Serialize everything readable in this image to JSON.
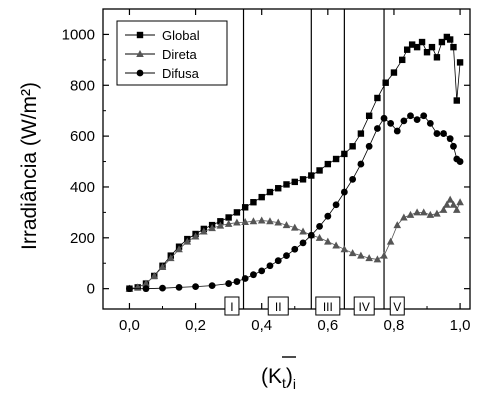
{
  "chart_data": {
    "type": "scatter",
    "ylabel": "Irradiância (W/m²)",
    "xlabel_main": "(K",
    "xlabel_sub_t": "t",
    "xlabel_close": ")",
    "xlabel_sub_i": "i",
    "xlim": [
      -0.08,
      1.03
    ],
    "ylim": [
      -80,
      1100
    ],
    "grid": false,
    "legend_position": "top-left",
    "x_ticks": [
      {
        "value": 0.0,
        "label": "0,0"
      },
      {
        "value": 0.2,
        "label": "0,2"
      },
      {
        "value": 0.4,
        "label": "0,4"
      },
      {
        "value": 0.6,
        "label": "0,6"
      },
      {
        "value": 0.8,
        "label": "0,8"
      },
      {
        "value": 1.0,
        "label": "1,0"
      }
    ],
    "y_ticks": [
      {
        "value": 0,
        "label": "0"
      },
      {
        "value": 200,
        "label": "200"
      },
      {
        "value": 400,
        "label": "400"
      },
      {
        "value": 600,
        "label": "600"
      },
      {
        "value": 800,
        "label": "800"
      },
      {
        "value": 1000,
        "label": "1000"
      }
    ],
    "regions": [
      {
        "label": "I",
        "x_center": 0.31
      },
      {
        "label": "II",
        "x_center": 0.45
      },
      {
        "label": "III",
        "x_center": 0.6
      },
      {
        "label": "IV",
        "x_center": 0.71
      },
      {
        "label": "V",
        "x_center": 0.81
      }
    ],
    "region_dividers": [
      0.345,
      0.55,
      0.65,
      0.77
    ],
    "series": [
      {
        "name": "Global",
        "marker": "square",
        "x": [
          0.0,
          0.025,
          0.05,
          0.075,
          0.1,
          0.125,
          0.15,
          0.175,
          0.2,
          0.225,
          0.25,
          0.275,
          0.3,
          0.325,
          0.35,
          0.375,
          0.4,
          0.425,
          0.45,
          0.475,
          0.5,
          0.525,
          0.55,
          0.575,
          0.6,
          0.625,
          0.65,
          0.675,
          0.7,
          0.725,
          0.75,
          0.775,
          0.8,
          0.825,
          0.84,
          0.855,
          0.87,
          0.885,
          0.9,
          0.915,
          0.93,
          0.945,
          0.96,
          0.97,
          0.98,
          0.99,
          1.0
        ],
        "y": [
          0,
          5,
          20,
          50,
          90,
          130,
          165,
          195,
          215,
          235,
          250,
          265,
          280,
          300,
          320,
          340,
          360,
          380,
          395,
          410,
          420,
          430,
          445,
          465,
          490,
          510,
          530,
          560,
          610,
          680,
          750,
          810,
          850,
          900,
          940,
          960,
          950,
          970,
          930,
          950,
          910,
          970,
          990,
          980,
          950,
          740,
          890
        ]
      },
      {
        "name": "Direta",
        "marker": "triangle",
        "x": [
          0.0,
          0.025,
          0.05,
          0.075,
          0.1,
          0.125,
          0.15,
          0.175,
          0.2,
          0.225,
          0.25,
          0.275,
          0.3,
          0.325,
          0.35,
          0.375,
          0.4,
          0.425,
          0.45,
          0.475,
          0.5,
          0.525,
          0.55,
          0.575,
          0.6,
          0.625,
          0.65,
          0.675,
          0.7,
          0.725,
          0.75,
          0.77,
          0.79,
          0.81,
          0.83,
          0.85,
          0.87,
          0.89,
          0.91,
          0.93,
          0.95,
          0.96,
          0.97,
          0.98,
          0.99,
          1.0
        ],
        "y": [
          0,
          5,
          20,
          50,
          85,
          120,
          155,
          185,
          205,
          225,
          238,
          248,
          255,
          260,
          262,
          265,
          268,
          265,
          260,
          250,
          240,
          225,
          210,
          200,
          185,
          170,
          155,
          140,
          130,
          120,
          115,
          130,
          185,
          250,
          280,
          290,
          300,
          300,
          290,
          295,
          310,
          330,
          350,
          330,
          310,
          340
        ]
      },
      {
        "name": "Difusa",
        "marker": "circle",
        "x": [
          0.0,
          0.05,
          0.1,
          0.15,
          0.2,
          0.25,
          0.3,
          0.325,
          0.35,
          0.375,
          0.4,
          0.425,
          0.45,
          0.475,
          0.5,
          0.525,
          0.55,
          0.575,
          0.6,
          0.625,
          0.65,
          0.675,
          0.7,
          0.725,
          0.75,
          0.77,
          0.79,
          0.81,
          0.83,
          0.85,
          0.87,
          0.89,
          0.91,
          0.93,
          0.95,
          0.97,
          0.98,
          0.99,
          1.0
        ],
        "y": [
          0,
          0,
          2,
          5,
          8,
          12,
          20,
          28,
          40,
          55,
          70,
          90,
          110,
          130,
          155,
          180,
          210,
          245,
          285,
          330,
          380,
          430,
          490,
          560,
          630,
          670,
          650,
          620,
          660,
          680,
          665,
          680,
          650,
          610,
          610,
          590,
          560,
          510,
          500
        ]
      }
    ]
  }
}
